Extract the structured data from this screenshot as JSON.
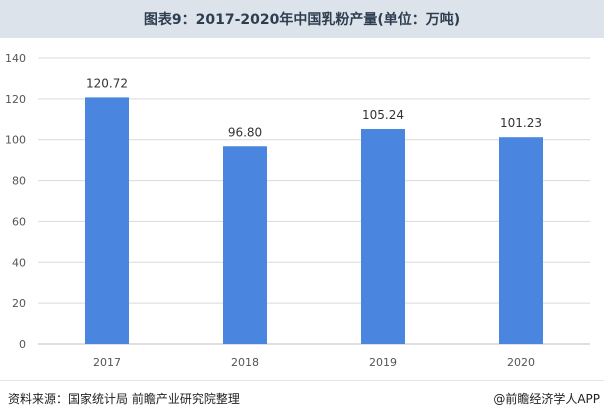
{
  "header": {
    "title": "图表9：2017-2020年中国乳粉产量(单位：万吨)"
  },
  "footer": {
    "source": "资料来源：国家统计局 前瞻产业研究院整理",
    "credit": "@前瞻经济学人APP"
  },
  "colors": {
    "bar": "#4a86e0",
    "grid": "#d9d9d9",
    "axis": "#bfbfbf",
    "title_bg": "#dde3ea"
  },
  "chart_data": {
    "type": "bar",
    "title": "图表9：2017-2020年中国乳粉产量(单位：万吨)",
    "categories": [
      "2017",
      "2018",
      "2019",
      "2020"
    ],
    "values": [
      120.72,
      96.8,
      105.24,
      101.23
    ],
    "value_labels": [
      "120.72",
      "96.80",
      "105.24",
      "101.23"
    ],
    "ylim": [
      0,
      140
    ],
    "yticks": [
      0,
      20,
      40,
      60,
      80,
      100,
      120,
      140
    ],
    "grid": true,
    "legend": "none"
  }
}
